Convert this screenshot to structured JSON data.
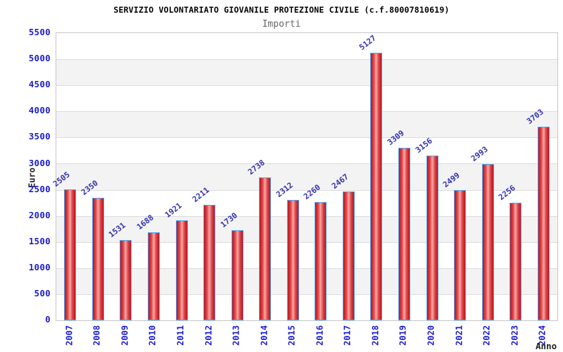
{
  "chart_data": {
    "type": "bar",
    "title": "SERVIZIO VOLONTARIATO GIOVANILE PROTEZIONE CIVILE (c.f.80007810619)",
    "subtitle": "Importi",
    "xlabel": "Anno",
    "ylabel": "Euro",
    "categories": [
      "2007",
      "2008",
      "2009",
      "2010",
      "2011",
      "2012",
      "2013",
      "2014",
      "2015",
      "2016",
      "2017",
      "2018",
      "2019",
      "2020",
      "2021",
      "2022",
      "2023",
      "2024"
    ],
    "values": [
      2505,
      2350,
      1531,
      1688,
      1921,
      2211,
      1730,
      2738,
      2312,
      2260,
      2467,
      5127,
      3309,
      3156,
      2499,
      2993,
      2256,
      3703
    ],
    "ylim": [
      0,
      5500
    ],
    "yticks": [
      0,
      500,
      1000,
      1500,
      2000,
      2500,
      3000,
      3500,
      4000,
      4500,
      5000,
      5500
    ],
    "grid": "horizontal gridlines every 500 with alternating shaded bands",
    "legend": "none",
    "data_labels": "value above each bar, rotated diagonally",
    "colors": {
      "bar_fill_edge": "#b81420",
      "bar_fill_mid": "#e04848",
      "bar_fill_center": "#f7a8a8",
      "bar_border": "#4da3f0",
      "axis_text": "#1c1ccd",
      "value_label": "#3333aa",
      "title": "#000000",
      "subtitle": "#666666",
      "axis_title": "#222222",
      "band_shade": "#f3f3f3",
      "gridline": "#dcdcdc",
      "plot_border": "#c6c6c6"
    }
  }
}
